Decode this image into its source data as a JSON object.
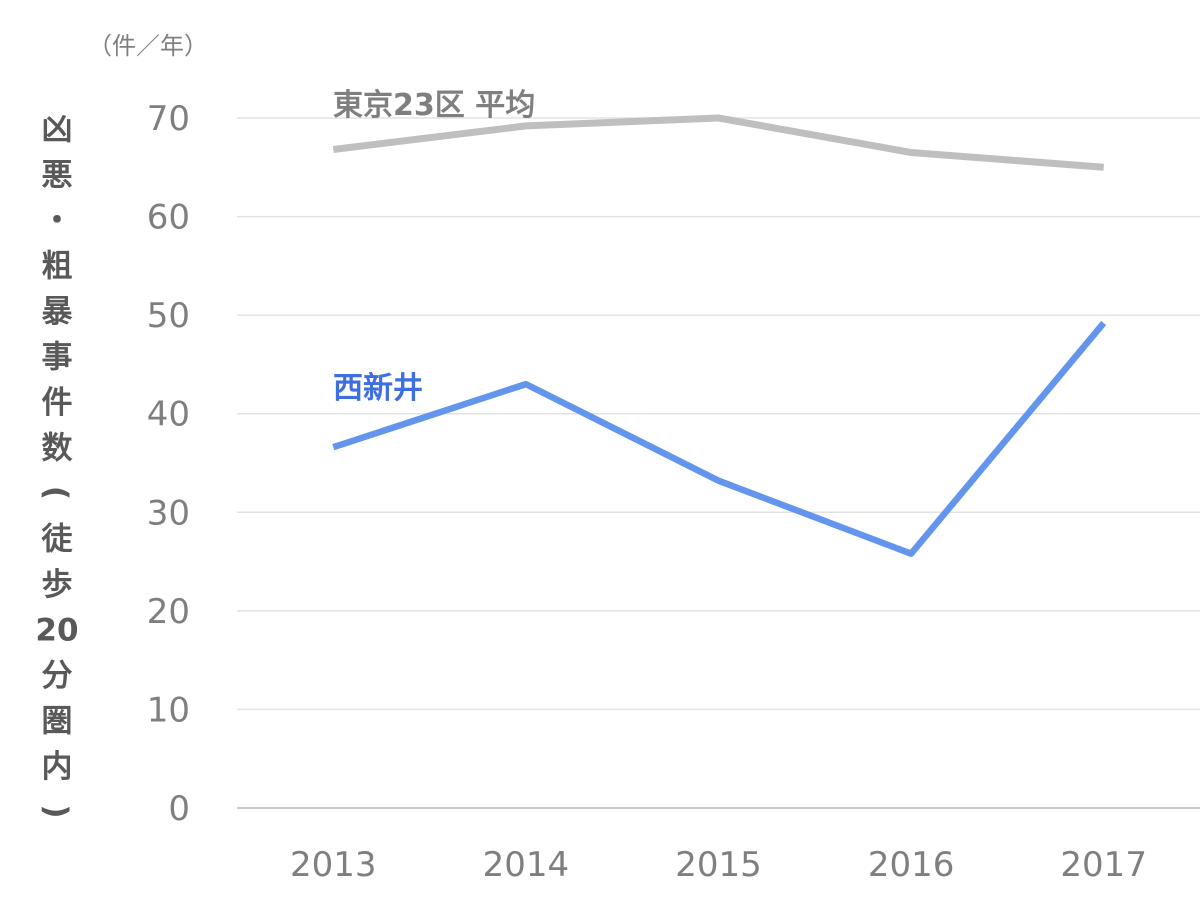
{
  "chart_data": {
    "type": "line",
    "unit_label": "（件／年）",
    "ylabel": "凶悪・粗暴事件数（徒歩20分圏内）",
    "xlabel": "",
    "categories": [
      "2013",
      "2014",
      "2015",
      "2016",
      "2017"
    ],
    "ylim": [
      0,
      70
    ],
    "yticks": [
      0,
      10,
      20,
      30,
      40,
      50,
      60,
      70
    ],
    "grid": true,
    "legend": "inline labels",
    "series": [
      {
        "name": "東京23区 平均",
        "values": [
          66.8,
          69.2,
          70.0,
          66.5,
          65.0
        ],
        "color": "#bfbfbf",
        "label_color": "#7f7f7f"
      },
      {
        "name": "西新井",
        "values": [
          36.6,
          43.0,
          33.2,
          25.8,
          49.2
        ],
        "color": "#6495ed",
        "label_color": "#3d6fe0"
      }
    ]
  }
}
